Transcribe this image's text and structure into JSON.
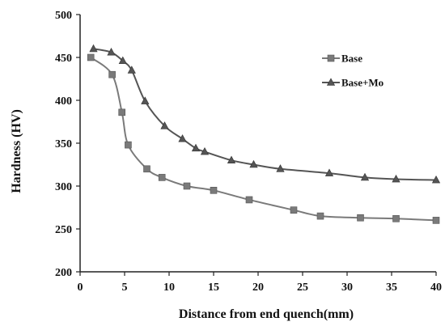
{
  "chart_data": {
    "type": "line",
    "xlabel": "Distance from end quench(mm)",
    "ylabel": "Hardness (HV)",
    "xlim": [
      0,
      40
    ],
    "ylim": [
      200,
      500
    ],
    "xticks": [
      0,
      5,
      10,
      15,
      20,
      25,
      30,
      35,
      40
    ],
    "yticks": [
      200,
      250,
      300,
      350,
      400,
      450,
      500
    ],
    "grid": false,
    "legend_position": "top-right",
    "series": [
      {
        "name": "Base",
        "marker": "square",
        "color": "#7a7a7a",
        "x": [
          1.2,
          3.6,
          4.7,
          5.4,
          7.5,
          9.2,
          12,
          15,
          19,
          24,
          27,
          31.5,
          35.5,
          40
        ],
        "y": [
          450,
          430,
          386,
          348,
          320,
          310,
          300,
          295,
          284,
          272,
          265,
          263,
          262,
          260
        ]
      },
      {
        "name": "Base+Mo",
        "marker": "triangle",
        "color": "#555555",
        "x": [
          1.5,
          3.5,
          4.8,
          5.8,
          7.3,
          9.5,
          11.5,
          13,
          14,
          17,
          19.5,
          22.5,
          28,
          32,
          35.5,
          40
        ],
        "y": [
          460,
          456,
          446,
          435,
          399,
          370,
          355,
          344,
          340,
          330,
          325,
          320,
          315,
          310,
          308,
          307
        ]
      }
    ]
  }
}
